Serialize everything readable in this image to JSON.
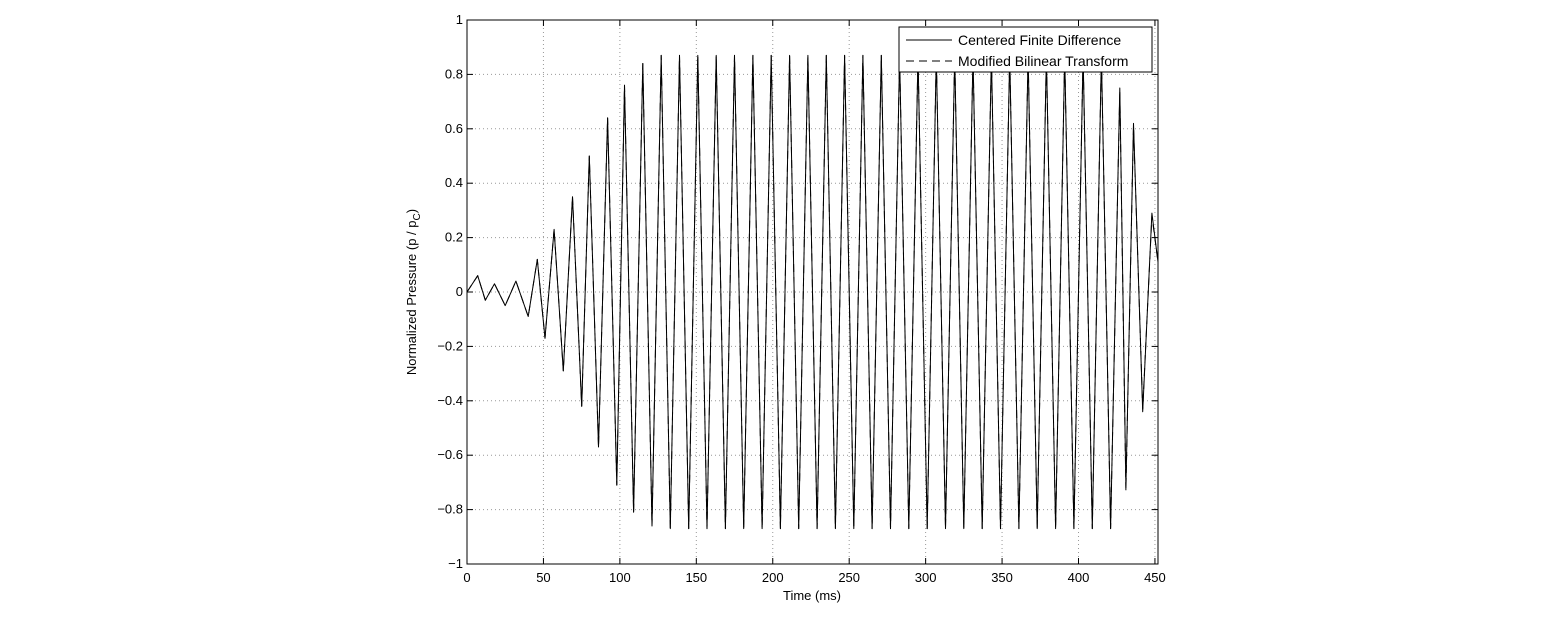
{
  "chart_data": {
    "type": "line",
    "title": "",
    "xlabel": "Time (ms)",
    "ylabel": {
      "main": "Normalized Pressure (p / p",
      "subscript": "C",
      "suffix": ")"
    },
    "xlim": [
      0,
      452
    ],
    "ylim": [
      -1,
      1
    ],
    "x_ticks": [
      0,
      50,
      100,
      150,
      200,
      250,
      300,
      350,
      400,
      450
    ],
    "x_tick_labels": [
      "0",
      "50",
      "100",
      "150",
      "200",
      "250",
      "300",
      "350",
      "400",
      "450"
    ],
    "y_ticks": [
      -1,
      -0.8,
      -0.6,
      -0.4,
      -0.2,
      0,
      0.2,
      0.4,
      0.6,
      0.8,
      1
    ],
    "y_tick_labels": [
      "−1",
      "−0.8",
      "−0.6",
      "−0.4",
      "−0.2",
      "0",
      "0.2",
      "0.4",
      "0.6",
      "0.8",
      "1"
    ],
    "grid": true,
    "legend_position": "top-right",
    "series": [
      {
        "name": "Centered Finite Difference",
        "line_style": "solid",
        "color": "#000000",
        "x": [
          0,
          7,
          12,
          18,
          25,
          32,
          40,
          46,
          51,
          57,
          63,
          69,
          75,
          80,
          86,
          92,
          98,
          103,
          109,
          115,
          121,
          127,
          133,
          139,
          145,
          151,
          157,
          163,
          169,
          175,
          181,
          187,
          193,
          199,
          205,
          211,
          217,
          223,
          229,
          235,
          241,
          247,
          253,
          259,
          265,
          271,
          277,
          283,
          289,
          295,
          301,
          307,
          313,
          319,
          325,
          331,
          337,
          343,
          349,
          355,
          361,
          367,
          373,
          379,
          385,
          391,
          397,
          403,
          409,
          415,
          421,
          427,
          431,
          436,
          442,
          448,
          452
        ],
        "y": [
          0,
          0.06,
          -0.03,
          0.03,
          -0.05,
          0.04,
          -0.09,
          0.12,
          -0.17,
          0.23,
          -0.29,
          0.35,
          -0.42,
          0.5,
          -0.57,
          0.64,
          -0.71,
          0.76,
          -0.81,
          0.84,
          -0.86,
          0.87,
          -0.87,
          0.87,
          -0.87,
          0.87,
          -0.87,
          0.87,
          -0.87,
          0.87,
          -0.87,
          0.87,
          -0.87,
          0.87,
          -0.87,
          0.87,
          -0.87,
          0.87,
          -0.87,
          0.87,
          -0.87,
          0.87,
          -0.87,
          0.87,
          -0.87,
          0.87,
          -0.87,
          0.87,
          -0.87,
          0.87,
          -0.87,
          0.87,
          -0.87,
          0.87,
          -0.87,
          0.87,
          -0.87,
          0.87,
          -0.87,
          0.87,
          -0.87,
          0.87,
          -0.87,
          0.87,
          -0.87,
          0.87,
          -0.87,
          0.87,
          -0.87,
          0.87,
          -0.87,
          0.75,
          -0.72,
          0.62,
          -0.44,
          0.29,
          0.11
        ]
      },
      {
        "name": "Modified Bilinear Transform",
        "line_style": "dashed",
        "color": "#000000",
        "x": [
          0,
          7,
          12,
          18,
          25,
          32,
          40,
          46,
          51,
          57,
          63,
          69,
          75,
          80,
          86,
          92,
          98,
          103,
          109,
          115,
          121,
          127,
          133,
          139,
          145,
          151,
          157,
          163,
          169,
          175,
          181,
          187,
          193,
          199,
          205,
          211,
          217,
          223,
          229,
          235,
          241,
          247,
          253,
          259,
          265,
          271,
          277,
          283,
          289,
          295,
          301,
          307,
          313,
          319,
          325,
          331,
          337,
          343,
          349,
          355,
          361,
          367,
          373,
          379,
          385,
          391,
          397,
          403,
          409,
          415,
          421,
          427,
          431,
          436,
          442,
          448,
          452
        ],
        "y": [
          0,
          0.06,
          -0.03,
          0.03,
          -0.05,
          0.04,
          -0.09,
          0.12,
          -0.17,
          0.23,
          -0.29,
          0.35,
          -0.42,
          0.5,
          -0.57,
          0.64,
          -0.71,
          0.76,
          -0.81,
          0.84,
          -0.86,
          0.87,
          -0.87,
          0.87,
          -0.87,
          0.87,
          -0.87,
          0.87,
          -0.87,
          0.87,
          -0.87,
          0.87,
          -0.87,
          0.87,
          -0.87,
          0.87,
          -0.87,
          0.87,
          -0.87,
          0.87,
          -0.87,
          0.87,
          -0.87,
          0.87,
          -0.87,
          0.87,
          -0.87,
          0.87,
          -0.87,
          0.87,
          -0.87,
          0.87,
          -0.87,
          0.87,
          -0.87,
          0.87,
          -0.87,
          0.87,
          -0.87,
          0.87,
          -0.87,
          0.87,
          -0.87,
          0.87,
          -0.87,
          0.87,
          -0.87,
          0.87,
          -0.87,
          0.87,
          -0.87,
          0.74,
          -0.73,
          0.61,
          -0.43,
          0.28,
          0.11
        ]
      }
    ]
  }
}
